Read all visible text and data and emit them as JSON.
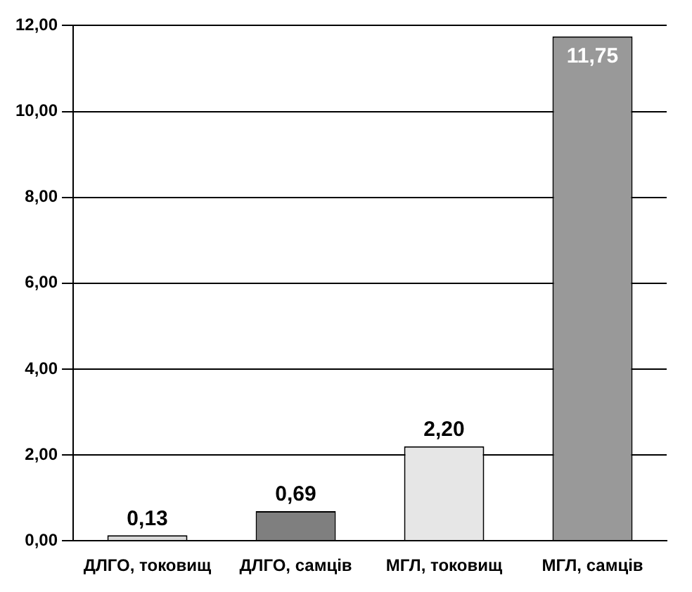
{
  "chart_data": {
    "type": "bar",
    "categories": [
      "ДЛГО, токовищ",
      "ДЛГО, самців",
      "МГЛ, токовищ",
      "МГЛ, самців"
    ],
    "values": [
      0.13,
      0.69,
      2.2,
      11.75
    ],
    "colors": [
      "#d9d9d9",
      "#7f7f7f",
      "#e6e6e6",
      "#999999"
    ],
    "value_labels": [
      "0,13",
      "0,69",
      "2,20",
      "11,75"
    ],
    "ylim": [
      0,
      12
    ],
    "yticks": [
      {
        "value": 0,
        "label": "0,00"
      },
      {
        "value": 2,
        "label": "2,00"
      },
      {
        "value": 4,
        "label": "4,00"
      },
      {
        "value": 6,
        "label": "6,00"
      },
      {
        "value": 8,
        "label": "8,00"
      },
      {
        "value": 10,
        "label": "10,00"
      },
      {
        "value": 12,
        "label": "12,00"
      }
    ],
    "grid": "y"
  }
}
